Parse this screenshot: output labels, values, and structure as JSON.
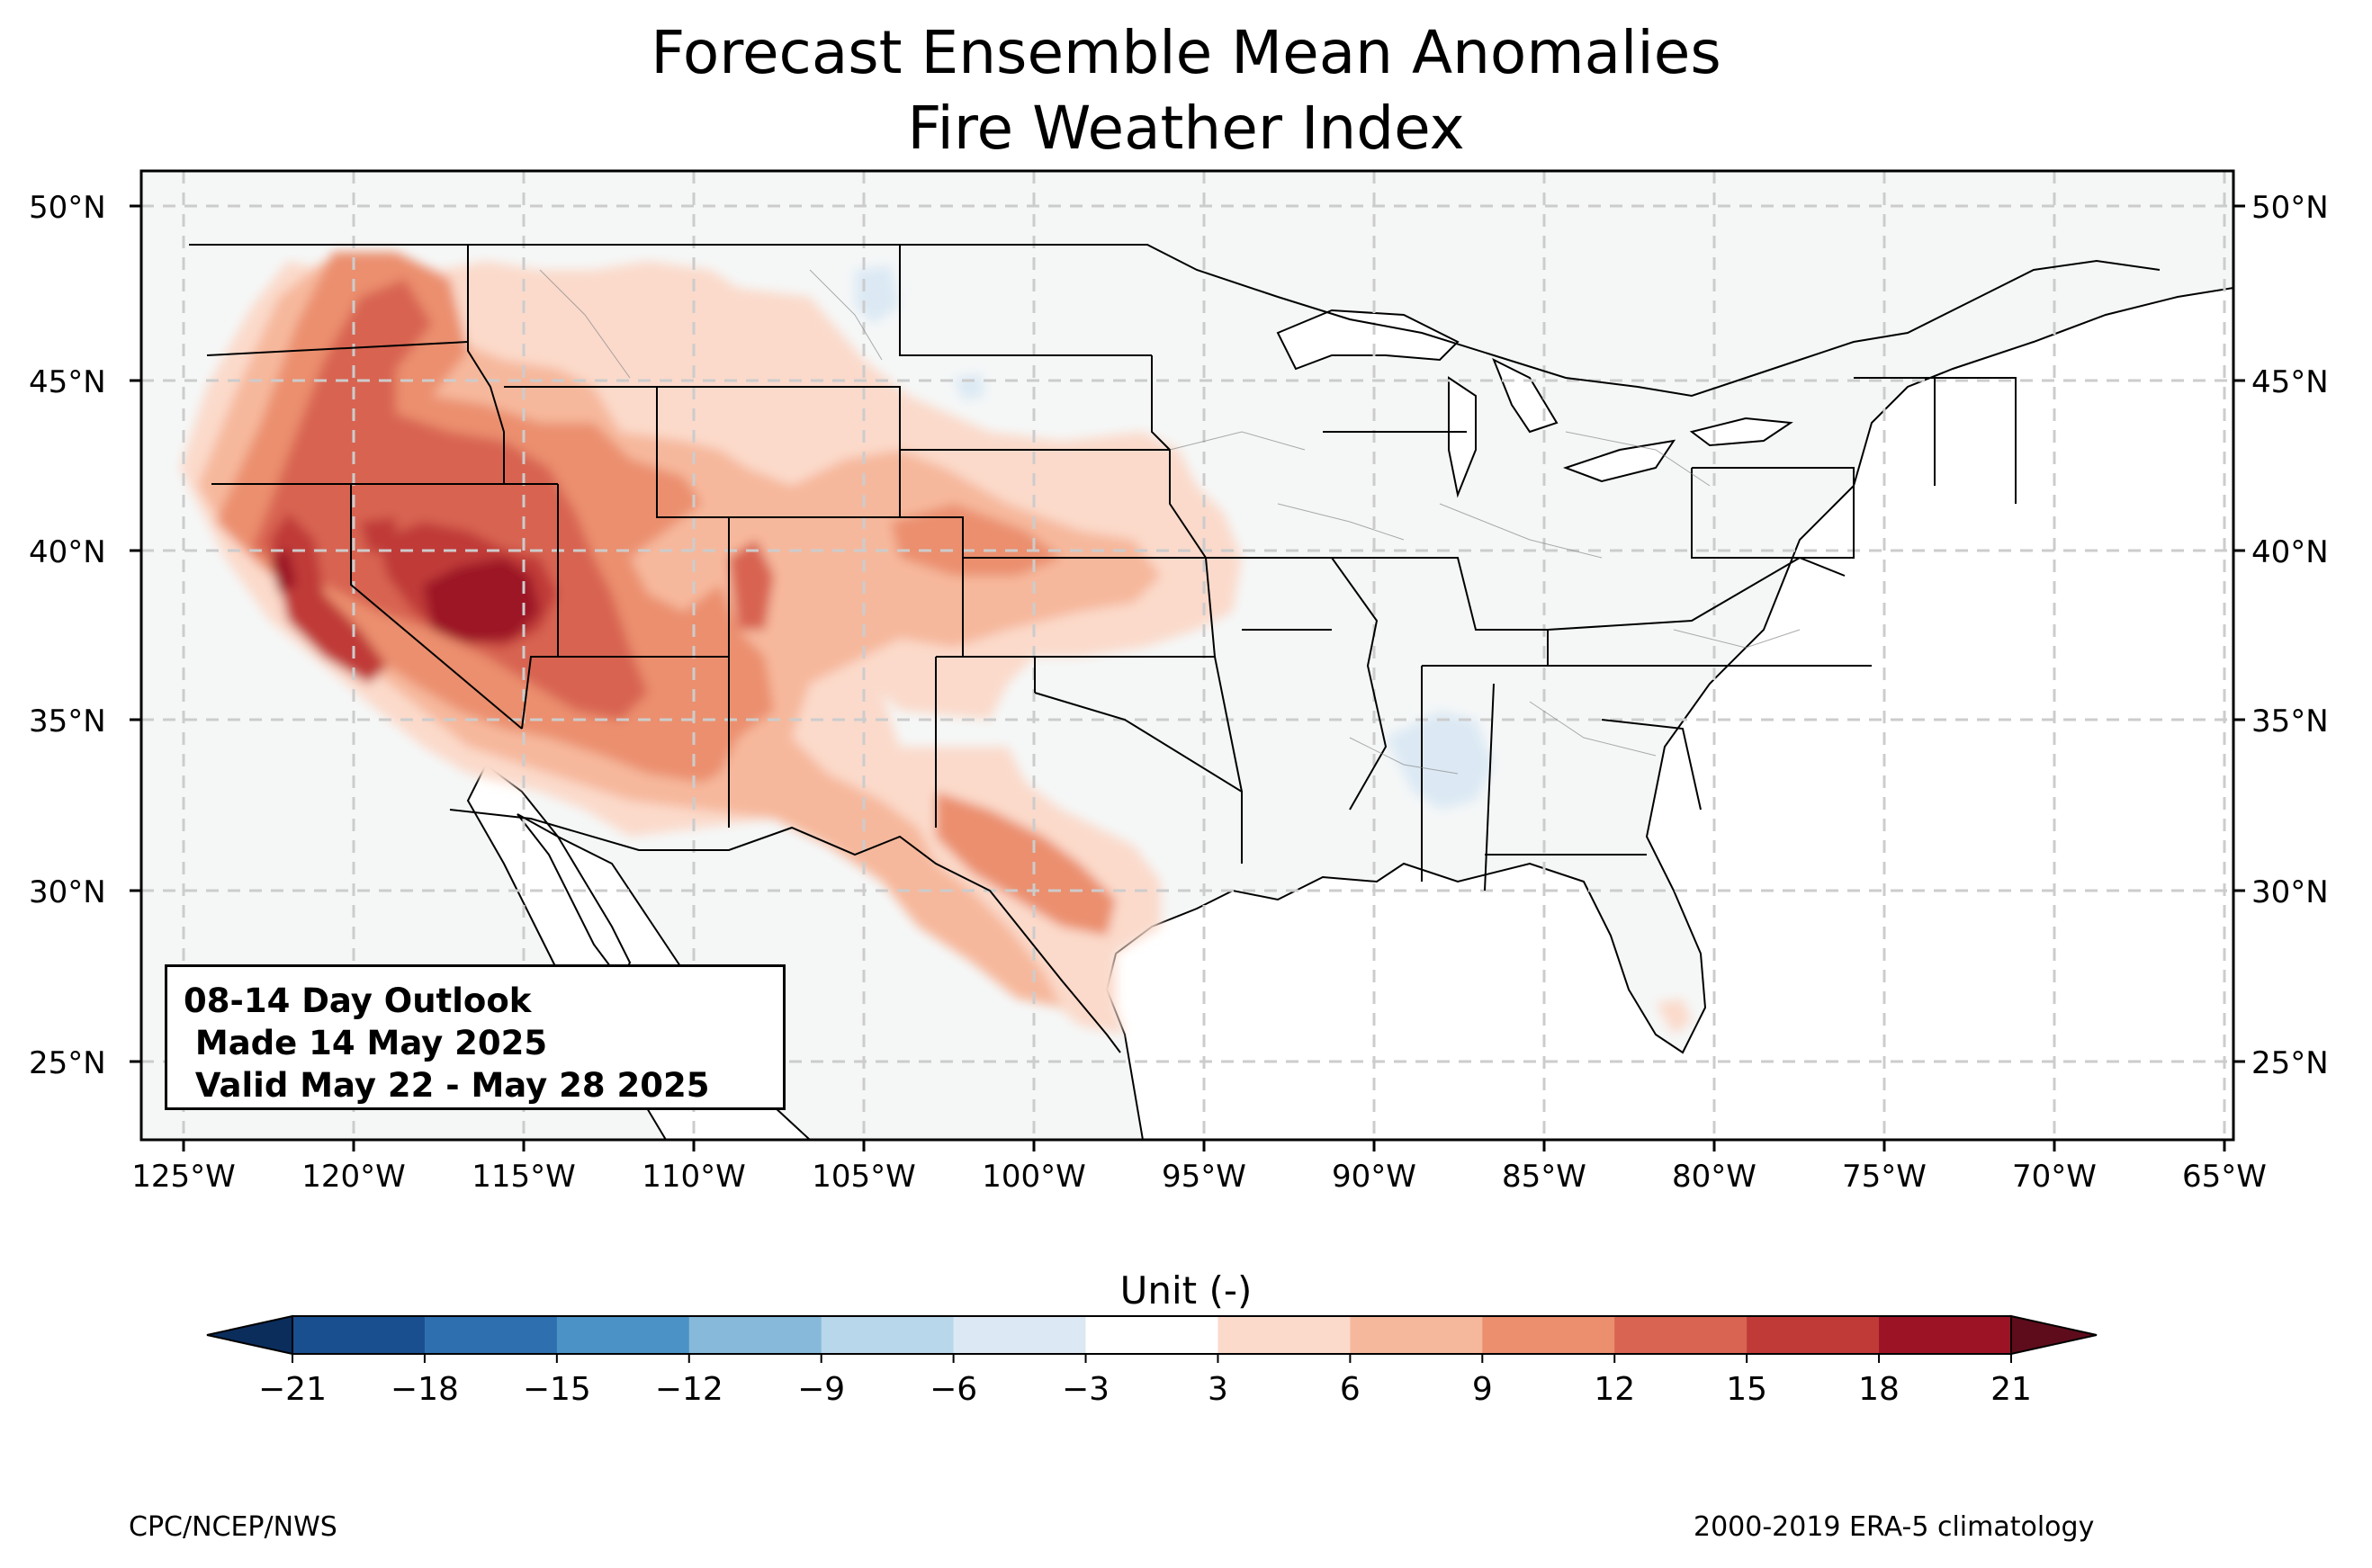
{
  "title": "Forecast Ensemble Mean Anomalies",
  "subtitle": "Fire Weather Index",
  "outlook": {
    "line1": "08-14 Day Outlook",
    "line2": " Made 14 May 2025",
    "line3": " Valid May 22 - May 28 2025"
  },
  "lat_labels": [
    "50°N",
    "45°N",
    "40°N",
    "35°N",
    "30°N",
    "25°N"
  ],
  "lon_labels": [
    "125°W",
    "120°W",
    "115°W",
    "110°W",
    "105°W",
    "100°W",
    "95°W",
    "90°W",
    "85°W",
    "80°W",
    "75°W",
    "70°W",
    "65°W"
  ],
  "colorbar": {
    "label": "Unit (-)",
    "ticks": [
      "−21",
      "−18",
      "−15",
      "−12",
      "−9",
      "−6",
      "−3",
      "3",
      "6",
      "9",
      "12",
      "15",
      "18",
      "21"
    ],
    "colors": [
      "#1a4f8f",
      "#2e6fb0",
      "#4b93c6",
      "#86b9da",
      "#b9d7ea",
      "#dce9f4",
      "#ffffff",
      "#fbdacb",
      "#f6b89c",
      "#eb8f6e",
      "#d86451",
      "#c03a38",
      "#9c1326"
    ],
    "under_color": "#0a2d5c",
    "over_color": "#5e0c1b"
  },
  "credit_left": "CPC/NCEP/NWS",
  "credit_right": "2000-2019 ERA-5 climatology",
  "colors": {
    "land": "#f5f7f7",
    "ocean": "#ffffff",
    "gridline": "#cccccc"
  }
}
